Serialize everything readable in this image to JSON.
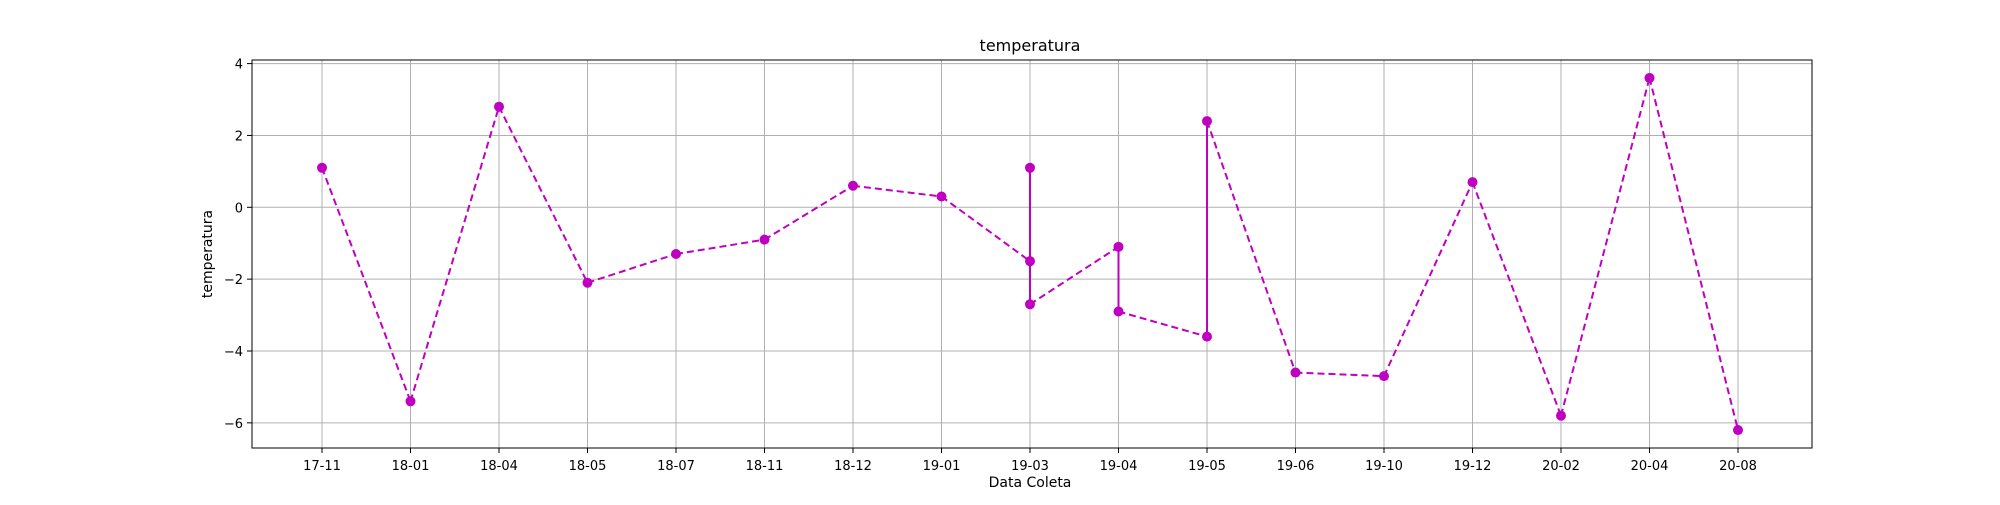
{
  "chart_data": {
    "type": "line",
    "title": "temperatura",
    "xlabel": "Data Coleta",
    "ylabel": "temperatura",
    "categories": [
      "17-11",
      "18-01",
      "18-04",
      "18-05",
      "18-07",
      "18-11",
      "18-12",
      "19-01",
      "19-03",
      "19-04",
      "19-05",
      "19-06",
      "19-10",
      "19-12",
      "20-02",
      "20-04",
      "20-08"
    ],
    "yticks": [
      4,
      2,
      0,
      -2,
      -4,
      -6
    ],
    "ytick_labels": [
      "4",
      "2",
      "0",
      "−2",
      "−4",
      "−6"
    ],
    "ylim": [
      -6.7,
      4.1
    ],
    "grid": true,
    "line_color": "#c000c0",
    "line_style": "dashed",
    "marker": "circle",
    "series": [
      {
        "points": [
          {
            "x": "17-11",
            "y": 1.1
          },
          {
            "x": "18-01",
            "y": -5.4
          },
          {
            "x": "18-04",
            "y": 2.8
          },
          {
            "x": "18-05",
            "y": -2.1
          },
          {
            "x": "18-07",
            "y": -1.3
          },
          {
            "x": "18-11",
            "y": -0.9
          },
          {
            "x": "18-12",
            "y": 0.6
          },
          {
            "x": "19-01",
            "y": 0.3
          },
          {
            "x": "19-03",
            "y": -1.5
          },
          {
            "x": "19-03",
            "y": 1.1
          },
          {
            "x": "19-03",
            "y": -2.7
          },
          {
            "x": "19-04",
            "y": -1.1
          },
          {
            "x": "19-04",
            "y": -2.9
          },
          {
            "x": "19-05",
            "y": -3.6
          },
          {
            "x": "19-05",
            "y": 2.4
          },
          {
            "x": "19-06",
            "y": -4.6
          },
          {
            "x": "19-10",
            "y": -4.7
          },
          {
            "x": "19-12",
            "y": 0.7
          },
          {
            "x": "20-02",
            "y": -5.8
          },
          {
            "x": "20-04",
            "y": 3.6
          },
          {
            "x": "20-08",
            "y": -6.2
          }
        ]
      }
    ]
  }
}
